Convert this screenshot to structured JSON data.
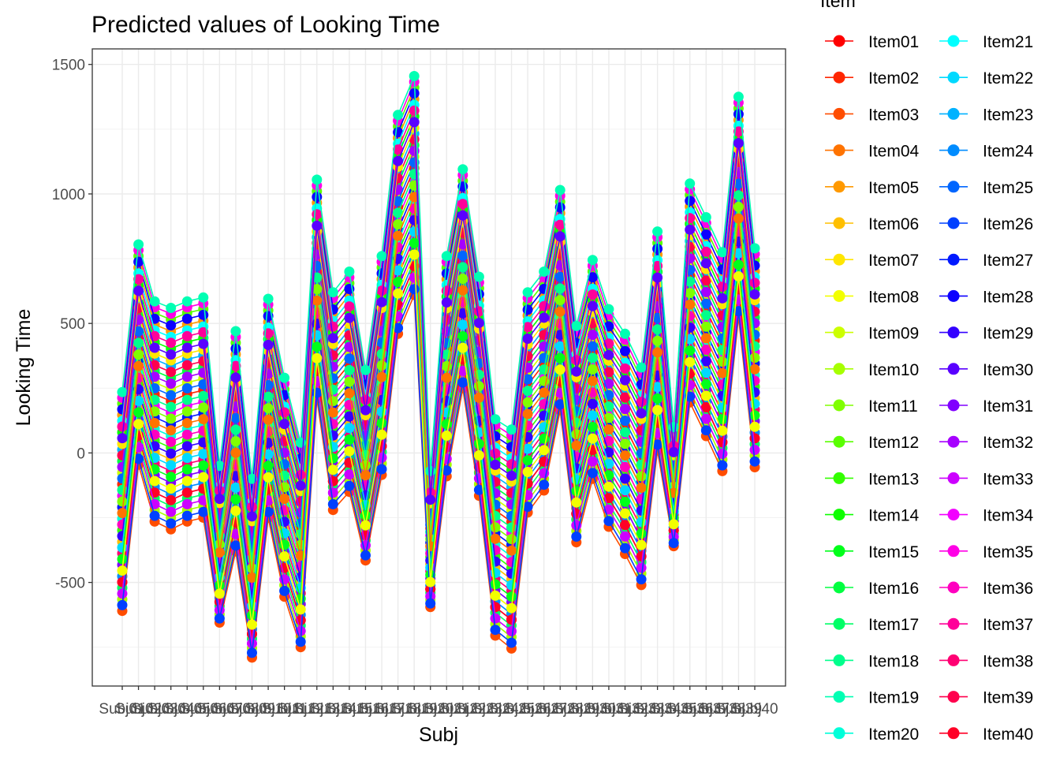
{
  "chart_data": {
    "type": "line",
    "title": "Predicted values of Looking Time",
    "xlabel": "Subj",
    "ylabel": "Looking Time",
    "ylim": [
      -900,
      1560
    ],
    "yticks": [
      -500,
      0,
      500,
      1000,
      1500
    ],
    "grid": true,
    "legend": {
      "title": "Item",
      "position": "right"
    },
    "categories": [
      "Subj01",
      "Subj02",
      "Subj03",
      "Subj04",
      "Subj05",
      "Subj06",
      "Subj07",
      "Subj08",
      "Subj09",
      "Subj10",
      "Subj11",
      "Subj12",
      "Subj13",
      "Subj14",
      "Subj15",
      "Subj16",
      "Subj17",
      "Subj18",
      "Subj19",
      "Subj20",
      "Subj21",
      "Subj22",
      "Subj23",
      "Subj24",
      "Subj25",
      "Subj26",
      "Subj27",
      "Subj28",
      "Subj29",
      "Subj30",
      "Subj31",
      "Subj32",
      "Subj33",
      "Subj34",
      "Subj35",
      "Subj36",
      "Subj37",
      "Subj38",
      "Subj39",
      "Subj40"
    ],
    "subject_max": [
      235,
      805,
      585,
      560,
      585,
      600,
      -50,
      470,
      -100,
      595,
      290,
      40,
      1055,
      620,
      700,
      320,
      760,
      1305,
      1455,
      -70,
      760,
      1095,
      680,
      130,
      90,
      620,
      700,
      1015,
      490,
      745,
      555,
      460,
      330,
      855,
      100,
      1040,
      910,
      775,
      1375,
      790
    ],
    "subject_min": [
      -610,
      -45,
      -265,
      -295,
      -265,
      -250,
      -655,
      -380,
      -790,
      -250,
      -555,
      -750,
      210,
      -220,
      -150,
      -415,
      -85,
      460,
      610,
      -595,
      -90,
      250,
      -165,
      -705,
      -755,
      -230,
      -145,
      165,
      -345,
      -100,
      -285,
      -390,
      -510,
      10,
      -360,
      195,
      65,
      -70,
      525,
      -55
    ],
    "series_names": [
      "Item01",
      "Item02",
      "Item03",
      "Item04",
      "Item05",
      "Item06",
      "Item07",
      "Item08",
      "Item09",
      "Item10",
      "Item11",
      "Item12",
      "Item13",
      "Item14",
      "Item15",
      "Item16",
      "Item17",
      "Item18",
      "Item19",
      "Item20",
      "Item21",
      "Item22",
      "Item23",
      "Item24",
      "Item25",
      "Item26",
      "Item27",
      "Item28",
      "Item29",
      "Item30",
      "Item31",
      "Item32",
      "Item33",
      "Item34",
      "Item35",
      "Item36",
      "Item37",
      "Item38",
      "Item39",
      "Item40"
    ],
    "series_colors": [
      "#FF0000",
      "#FF2600",
      "#FF4D00",
      "#FF7300",
      "#FF9900",
      "#FFBF00",
      "#FFE600",
      "#F2FF00",
      "#CCFF00",
      "#A6FF00",
      "#80FF00",
      "#59FF00",
      "#33FF00",
      "#0DFF00",
      "#00FF1A",
      "#00FF40",
      "#00FF66",
      "#00FF8C",
      "#00FFB3",
      "#00FFD9",
      "#00FFFF",
      "#00D9FF",
      "#00B2FF",
      "#008CFF",
      "#0066FF",
      "#0040FF",
      "#0019FF",
      "#0D00FF",
      "#3300FF",
      "#5900FF",
      "#8000FF",
      "#A600FF",
      "#CC00FF",
      "#F200FF",
      "#FF00E6",
      "#FF00BF",
      "#FF0099",
      "#FF0073",
      "#FF004D",
      "#FF0026"
    ],
    "x_tick_labels": [
      "Subj01",
      "Subj02",
      "Subj03",
      "Subj04",
      "Subj05",
      "Subj06",
      "Subj07",
      "Subj08",
      "Subj09",
      "Subj10",
      "Subj11",
      "Subj12",
      "Subj13",
      "Subj14",
      "Subj15",
      "Subj16",
      "Subj17",
      "Subj18",
      "Subj19",
      "Subj20",
      "Subj21",
      "Subj22",
      "Subj23",
      "Subj24",
      "Subj25",
      "Subj26",
      "Subj27",
      "Subj28",
      "Subj29",
      "Subj30",
      "Subj31",
      "Subj32",
      "Subj33",
      "Subj34",
      "Subj35",
      "Subj36",
      "Subj37",
      "Subj38",
      "Subj39",
      "Subj40"
    ]
  }
}
